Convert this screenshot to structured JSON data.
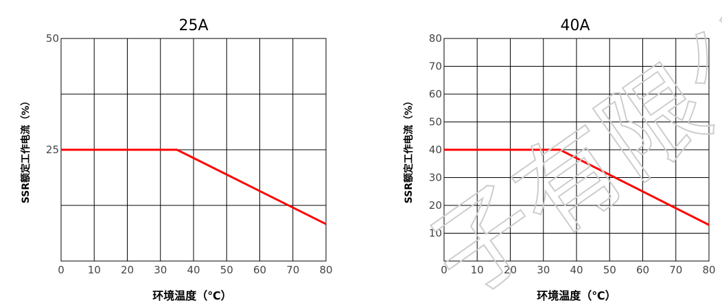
{
  "chart_data": [
    {
      "type": "line",
      "title": "25A",
      "xlabel": "环境温度（℃）",
      "ylabel": "SSR额定工作电流（%）",
      "xlim": [
        0,
        80
      ],
      "ylim": [
        0,
        50
      ],
      "x_ticks": [
        0,
        10,
        20,
        30,
        40,
        50,
        60,
        70,
        80
      ],
      "y_ticks": [
        25,
        50
      ],
      "y_grid": [
        0,
        12.5,
        25,
        37.5,
        50
      ],
      "grid": true,
      "series": [
        {
          "color": "#ff0000",
          "x": [
            0,
            35,
            80
          ],
          "y": [
            25,
            25,
            8.3
          ]
        }
      ]
    },
    {
      "type": "line",
      "title": "40A",
      "xlabel": "环境温度（℃）",
      "ylabel": "SSR额定工作电流（%）",
      "xlim": [
        0,
        80
      ],
      "ylim": [
        0,
        80
      ],
      "x_ticks": [
        0,
        10,
        20,
        30,
        40,
        50,
        60,
        70,
        80
      ],
      "y_ticks": [
        10,
        20,
        30,
        40,
        50,
        60,
        70,
        80
      ],
      "y_grid": [
        0,
        10,
        20,
        30,
        40,
        50,
        60,
        70,
        80
      ],
      "grid": true,
      "series": [
        {
          "color": "#ff0000",
          "x": [
            0,
            35,
            80
          ],
          "y": [
            40,
            40,
            13
          ]
        }
      ]
    }
  ],
  "watermark": {
    "text": "子有限公"
  }
}
